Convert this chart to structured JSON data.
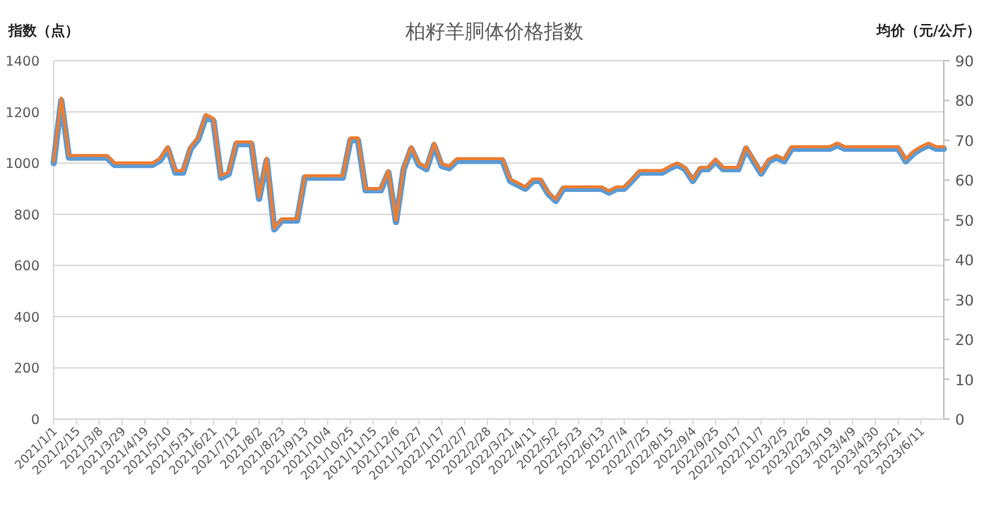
{
  "chart_data": {
    "type": "line",
    "title": "柏籽羊胴体价格指数",
    "ylabel": "指数（点）",
    "y2label": "均价（元/公斤）",
    "categories": [
      "2021/1/1",
      null,
      null,
      "2021/2/15",
      null,
      null,
      "2021/3/8",
      null,
      null,
      "2021/3/29",
      null,
      null,
      "2021/4/19",
      null,
      null,
      "2021/5/10",
      null,
      null,
      "2021/5/31",
      null,
      null,
      "2021/6/21",
      null,
      null,
      "2021/7/12",
      null,
      null,
      "2021/8/2",
      null,
      null,
      "2021/8/23",
      null,
      null,
      "2021/9/13",
      null,
      null,
      "2021/10/4",
      null,
      null,
      "2021/10/25",
      null,
      null,
      "2021/11/15",
      null,
      null,
      "2021/12/6",
      null,
      null,
      "2021/12/27",
      null,
      null,
      "2022/1/17",
      null,
      null,
      "2022/2/7",
      null,
      null,
      "2022/2/28",
      null,
      null,
      "2022/3/21",
      null,
      null,
      "2022/4/11",
      null,
      null,
      "2022/5/2",
      null,
      null,
      "2022/5/23",
      null,
      null,
      "2022/6/13",
      null,
      null,
      "2022/7/4",
      null,
      null,
      "2022/7/25",
      null,
      null,
      "2022/8/15",
      null,
      null,
      "2022/9/4",
      null,
      null,
      "2022/9/25",
      null,
      null,
      "2022/10/17",
      null,
      null,
      "2022/11/7",
      null,
      null,
      "2023/2/5",
      null,
      null,
      "2023/2/26",
      null,
      null,
      "2023/3/19",
      null,
      null,
      "2023/4/9",
      null,
      null,
      "2023/4/30",
      null,
      null,
      "2023/5/21",
      null,
      null,
      "2023/6/11",
      null,
      null,
      null
    ],
    "series": [
      {
        "color": "#5b9bd5",
        "values": [
          1000,
          1244,
          1022,
          1022,
          1022,
          1022,
          1022,
          1022,
          993,
          993,
          993,
          993,
          993,
          993,
          1011,
          1056,
          963,
          963,
          1056,
          1093,
          1180,
          1165,
          943,
          957,
          1074,
          1074,
          1074,
          861,
          1011,
          741,
          776,
          776,
          776,
          943,
          943,
          943,
          943,
          943,
          943,
          1089,
          1089,
          894,
          894,
          894,
          963,
          770,
          976,
          1056,
          993,
          976,
          1069,
          989,
          980,
          1009,
          1009,
          1009,
          1009,
          1009,
          1009,
          1009,
          930,
          915,
          900,
          930,
          930,
          880,
          852,
          900,
          900,
          900,
          900,
          900,
          900,
          885,
          900,
          900,
          930,
          963,
          963,
          963,
          963,
          980,
          993,
          976,
          930,
          976,
          976,
          1007,
          976,
          976,
          976,
          1056,
          1007,
          959,
          1007,
          1022,
          1007,
          1056,
          1056,
          1056,
          1056,
          1056,
          1056,
          1070,
          1056,
          1056,
          1056,
          1056,
          1056,
          1056,
          1056,
          1056,
          1007,
          1037,
          1056,
          1070,
          1056,
          1056
        ]
      },
      {
        "color": "#ed7d31",
        "axis": "y2",
        "values": [
          64.8,
          80.6,
          66.2,
          66.2,
          66.2,
          66.2,
          66.2,
          66.2,
          64.3,
          64.3,
          64.3,
          64.3,
          64.3,
          64.3,
          65.5,
          68.4,
          62.4,
          62.4,
          68.4,
          70.8,
          76.5,
          75.5,
          61.1,
          62.0,
          69.6,
          69.6,
          69.6,
          55.8,
          65.5,
          48.0,
          50.3,
          50.3,
          50.3,
          61.1,
          61.1,
          61.1,
          61.1,
          61.1,
          61.1,
          70.6,
          70.6,
          57.9,
          57.9,
          57.9,
          62.4,
          49.9,
          63.2,
          68.4,
          64.3,
          63.2,
          69.3,
          64.1,
          63.5,
          65.4,
          65.4,
          65.4,
          65.4,
          65.4,
          65.4,
          65.4,
          60.3,
          59.3,
          58.3,
          60.3,
          60.3,
          57.0,
          55.2,
          58.3,
          58.3,
          58.3,
          58.3,
          58.3,
          58.3,
          57.3,
          58.3,
          58.3,
          60.3,
          62.4,
          62.4,
          62.4,
          62.4,
          63.5,
          64.3,
          63.2,
          60.3,
          63.2,
          63.2,
          65.3,
          63.2,
          63.2,
          63.2,
          68.4,
          65.3,
          62.1,
          65.3,
          66.2,
          65.3,
          68.4,
          68.4,
          68.4,
          68.4,
          68.4,
          68.4,
          69.3,
          68.4,
          68.4,
          68.4,
          68.4,
          68.4,
          68.4,
          68.4,
          68.4,
          65.3,
          67.2,
          68.4,
          69.3,
          68.4,
          68.4
        ]
      }
    ],
    "ylim": [
      0,
      1400
    ],
    "yticks": [
      0,
      200,
      400,
      600,
      800,
      1000,
      1200,
      1400
    ],
    "y2lim": [
      0,
      90
    ],
    "y2ticks": [
      0,
      10,
      20,
      30,
      40,
      50,
      60,
      70,
      80,
      90
    ],
    "grid": "y",
    "marker": "none"
  }
}
